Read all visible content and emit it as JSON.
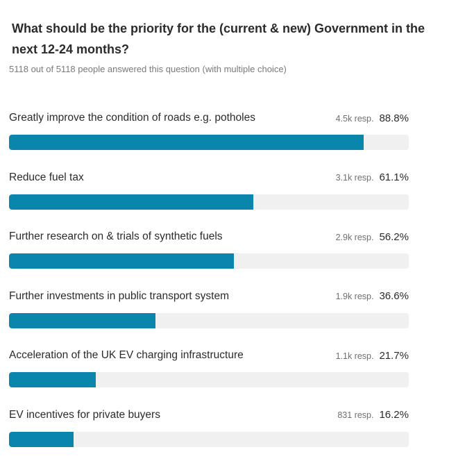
{
  "question": "What should be the priority for the (current & new) Government in the next 12-24 months?",
  "summary": "5118 out of 5118 people answered this question (with multiple choice)",
  "colors": {
    "bar_fill": "#0a86ad",
    "bar_track": "#f0f0f0"
  },
  "chart_data": {
    "type": "bar",
    "orientation": "horizontal",
    "categories": [
      "Greatly improve the condition of roads e.g. potholes",
      "Reduce fuel tax",
      "Further research on & trials of synthetic fuels",
      "Further investments in public transport system",
      "Acceleration of the UK EV charging infrastructure",
      "EV incentives for private buyers"
    ],
    "values": [
      88.8,
      61.1,
      56.2,
      36.6,
      21.7,
      16.2
    ],
    "value_labels": [
      "88.8%",
      "61.1%",
      "56.2%",
      "36.6%",
      "21.7%",
      "16.2%"
    ],
    "response_labels": [
      "4.5k resp.",
      "3.1k resp.",
      "2.9k resp.",
      "1.9k resp.",
      "1.1k resp.",
      "831 resp."
    ],
    "xlim": [
      0,
      100
    ],
    "grid": false,
    "legend": "none"
  }
}
